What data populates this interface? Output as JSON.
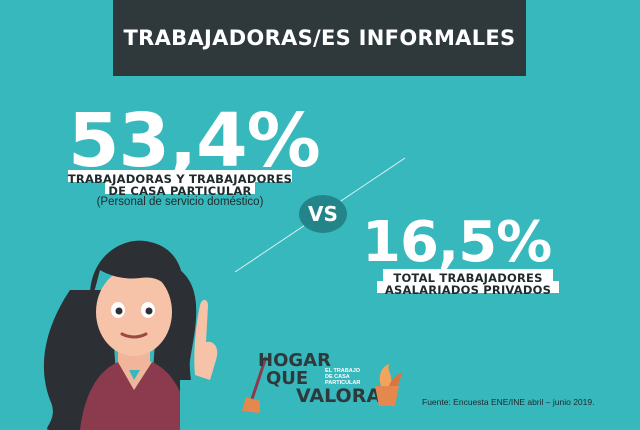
{
  "header": {
    "title": "TRABAJADORAS/ES INFORMALES"
  },
  "left_stat": {
    "value": "53,4%",
    "label_line1": "TRABAJADORAS Y TRABAJADORES",
    "label_line2": "DE CASA PARTICULAR",
    "sublabel": "(Personal de servicio doméstico)"
  },
  "versus": "VS",
  "right_stat": {
    "value": "16,5%",
    "label_line1": "TOTAL TRABAJADORES",
    "label_line2": "ASALARIADOS PRIVADOS"
  },
  "logo": {
    "line1": "HOGAR",
    "line2": "QUE",
    "line3": "VALORA",
    "tagline1": "EL TRABAJO",
    "tagline2": "DE CASA",
    "tagline3": "PARTICULAR"
  },
  "source": "Fuente: Encuesta ENE/INE abril – junio 2019.",
  "colors": {
    "background": "#37b8bd",
    "title_bar": "#2f393c",
    "vs_circle": "#23858a",
    "label_bar": "#ffffff"
  },
  "icons": [
    "woman-illustration",
    "broom-icon",
    "cleaning-bucket-icon"
  ]
}
